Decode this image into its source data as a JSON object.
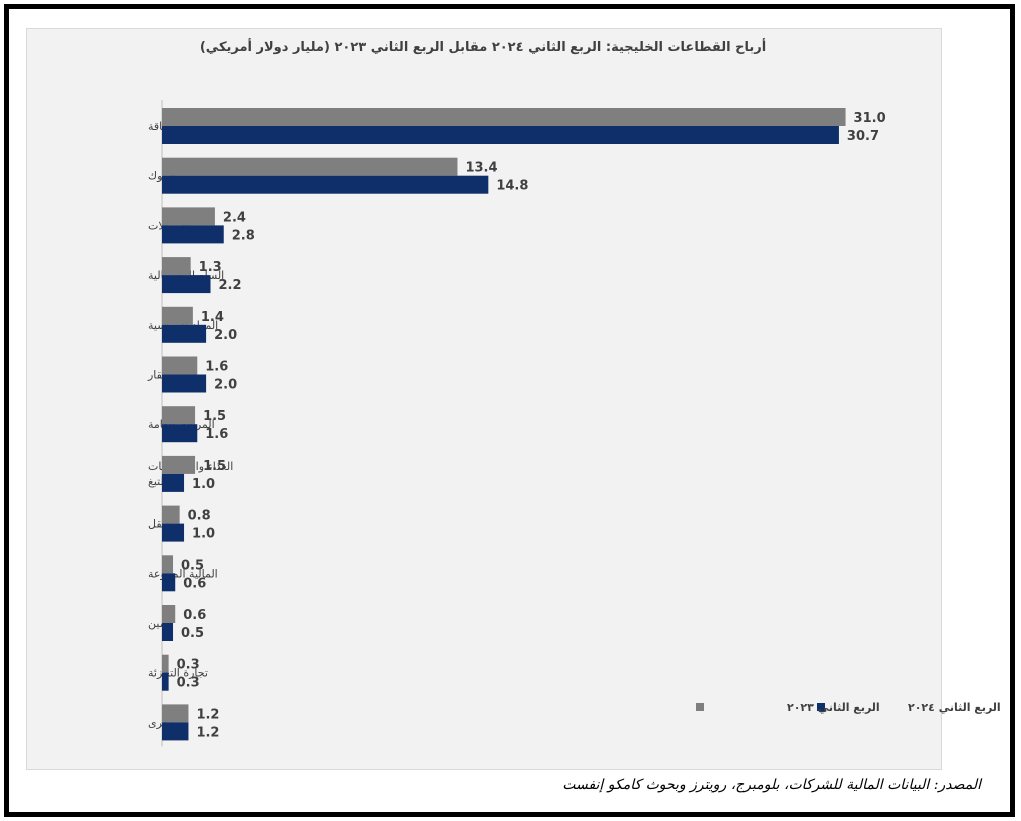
{
  "chart_data": {
    "type": "bar",
    "orientation": "horizontal",
    "title": "أرباح القطاعات الخليجية: الربع الثاني ٢٠٢٤ مقابل الربع الثاني ٢٠٢٣ (مليار دولار أمريكي)",
    "categories": [
      "طاقة",
      "البنوك",
      "الاتصالات",
      "السلع الرأسمالية",
      "المواد الأساسية",
      "العقار",
      "المرافق العامة",
      "الغذاء والمشروبات والتبغ",
      "النقل",
      "المالية المتنوعة",
      "تأمين",
      "تجارة التجزئة",
      "أخرى"
    ],
    "series": [
      {
        "name": "الربع الثاني ٢٠٢٣",
        "color": "#7f7f7f",
        "values": [
          31.0,
          13.4,
          2.4,
          1.3,
          1.4,
          1.6,
          1.5,
          1.5,
          0.8,
          0.5,
          0.6,
          0.3,
          1.2
        ],
        "labels": [
          "31.0",
          "13.4",
          "2.4",
          "1.3",
          "1.4",
          "1.6",
          "1.5",
          "1.5",
          "0.8",
          "0.5",
          "0.6",
          "0.3",
          "1.2"
        ]
      },
      {
        "name": "الربع الثاني ٢٠٢٤",
        "color": "#0f2f6b",
        "values": [
          30.7,
          14.8,
          2.8,
          2.2,
          2.0,
          2.0,
          1.6,
          1.0,
          1.0,
          0.6,
          0.5,
          0.3,
          1.2
        ],
        "labels": [
          "30.7",
          "14.8",
          "2.8",
          "2.2",
          "2.0",
          "2.0",
          "1.6",
          "1.0",
          "1.0",
          "0.6",
          "0.5",
          "0.3",
          "1.2"
        ]
      }
    ],
    "xlim": [
      0,
      32
    ],
    "grid": false,
    "legend_position": "bottom-right"
  },
  "source": "المصدر: البيانات المالية للشركات، بلومبرج، رويترز وبحوث كامكو إنفست"
}
